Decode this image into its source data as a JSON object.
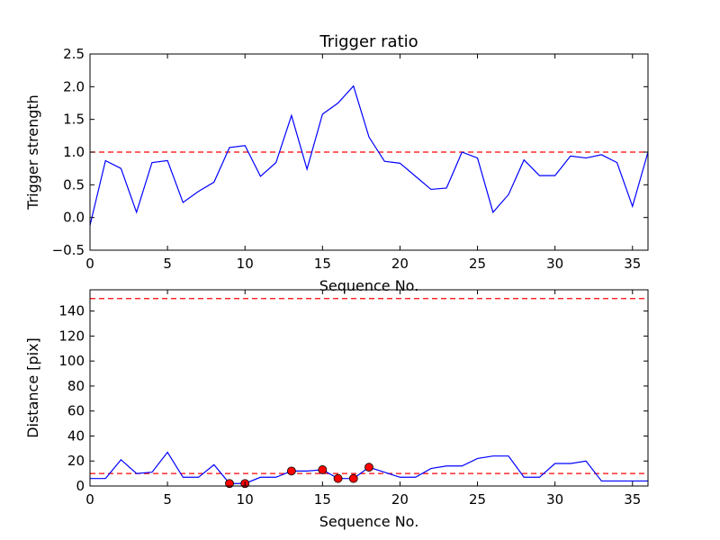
{
  "chart_data": [
    {
      "type": "line",
      "title": "Trigger ratio",
      "xlabel": "Sequence No.",
      "ylabel": "Trigger strength",
      "xlim": [
        0,
        36
      ],
      "ylim": [
        -0.5,
        2.5
      ],
      "xticks": [
        0,
        5,
        10,
        15,
        20,
        25,
        30,
        35
      ],
      "xtick_labels": [
        "0",
        "5",
        "10",
        "15",
        "20",
        "25",
        "30",
        "35"
      ],
      "yticks": [
        -0.5,
        0.0,
        0.5,
        1.0,
        1.5,
        2.0,
        2.5
      ],
      "ytick_labels": [
        "−0.5",
        "0.0",
        "0.5",
        "1.0",
        "1.5",
        "2.0",
        "2.5"
      ],
      "series": [
        {
          "name": "trigger strength",
          "color": "#0000ff",
          "x": [
            0,
            1,
            2,
            3,
            4,
            5,
            6,
            7,
            8,
            9,
            10,
            11,
            12,
            13,
            14,
            15,
            16,
            17,
            18,
            19,
            20,
            21,
            22,
            23,
            24,
            25,
            26,
            27,
            28,
            29,
            30,
            31,
            32,
            33,
            34,
            35,
            36
          ],
          "values": [
            -0.12,
            0.87,
            0.75,
            0.08,
            0.84,
            0.87,
            0.23,
            0.4,
            0.54,
            1.07,
            1.1,
            0.63,
            0.84,
            1.56,
            0.74,
            1.58,
            1.75,
            2.01,
            1.23,
            0.86,
            0.83,
            0.63,
            0.43,
            0.45,
            1.0,
            0.91,
            0.08,
            0.35,
            0.88,
            0.64,
            0.64,
            0.94,
            0.91,
            0.96,
            0.84,
            0.17,
            1.0
          ]
        }
      ],
      "threshold": {
        "value": 1.0,
        "color": "#ff0000",
        "style": "dashed"
      }
    },
    {
      "type": "line",
      "title": "",
      "xlabel": "Sequence No.",
      "ylabel": "Distance [pix]",
      "xlim": [
        0,
        36
      ],
      "ylim": [
        0,
        157
      ],
      "xticks": [
        0,
        5,
        10,
        15,
        20,
        25,
        30,
        35
      ],
      "xtick_labels": [
        "0",
        "5",
        "10",
        "15",
        "20",
        "25",
        "30",
        "35"
      ],
      "yticks": [
        0,
        20,
        40,
        60,
        80,
        100,
        120,
        140
      ],
      "ytick_labels": [
        "0",
        "20",
        "40",
        "60",
        "80",
        "100",
        "120",
        "140"
      ],
      "series": [
        {
          "name": "distance",
          "color": "#0000ff",
          "x": [
            0,
            1,
            2,
            3,
            4,
            5,
            6,
            7,
            8,
            9,
            10,
            11,
            12,
            13,
            14,
            15,
            16,
            17,
            18,
            19,
            20,
            21,
            22,
            23,
            24,
            25,
            26,
            27,
            28,
            29,
            30,
            31,
            32,
            33,
            34,
            35,
            36
          ],
          "values": [
            6,
            6,
            21,
            10,
            11,
            27,
            7,
            7,
            17,
            2,
            2,
            7,
            7,
            12,
            12,
            13,
            6,
            6,
            15,
            11,
            7,
            7,
            14,
            16,
            16,
            22,
            24,
            24,
            7,
            7,
            18,
            18,
            20,
            4,
            4,
            4,
            4
          ]
        }
      ],
      "markers": {
        "name": "triggered",
        "color": "#ff0000",
        "x": [
          9,
          10,
          13,
          15,
          16,
          17,
          18
        ],
        "values": [
          2,
          2,
          12,
          13,
          6,
          6,
          15
        ]
      },
      "thresholds": [
        {
          "value": 10,
          "color": "#ff0000",
          "style": "dashed"
        },
        {
          "value": 150,
          "color": "#ff0000",
          "style": "dashed"
        }
      ]
    }
  ]
}
